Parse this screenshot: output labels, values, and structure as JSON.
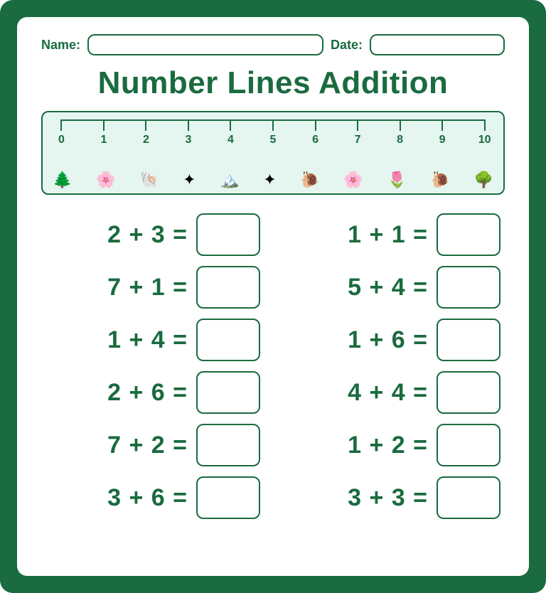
{
  "colors": {
    "primary": "#1a6b3f",
    "numline_bg": "#e5f5f0",
    "page_bg": "#ffffff"
  },
  "header": {
    "name_label": "Name:",
    "date_label": "Date:"
  },
  "title": "Number Lines Addition",
  "numberline": {
    "min": 0,
    "max": 10,
    "ticks": [
      "0",
      "1",
      "2",
      "3",
      "4",
      "5",
      "6",
      "7",
      "8",
      "9",
      "10"
    ],
    "decorations": [
      "🌲",
      "🌸",
      "🐚",
      "✦",
      "🏔️",
      "✦",
      "🐌",
      "🌸",
      "🌷",
      "🐌",
      "🌳"
    ]
  },
  "problems": {
    "left": [
      "2 + 3 =",
      "7 + 1 =",
      "1 + 4 =",
      "2 + 6 =",
      "7 + 2 =",
      "3 + 6 ="
    ],
    "right": [
      "1 + 1 =",
      "5 + 4 =",
      "1 + 6 =",
      "4 + 4 =",
      "1 + 2 =",
      "3 + 3 ="
    ]
  },
  "layout": {
    "answer_box_width": 90,
    "answer_box_height": 60,
    "expr_fontsize": 34,
    "title_fontsize": 44
  }
}
